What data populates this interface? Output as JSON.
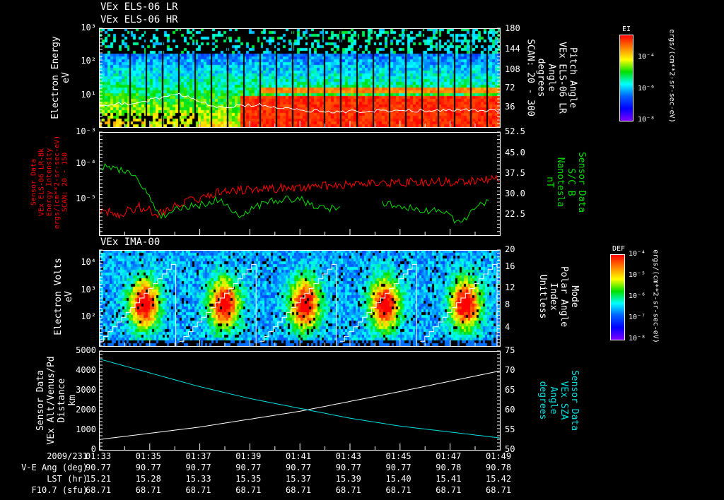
{
  "chart_data": [
    {
      "type": "heatmap",
      "name": "electron-energy-spectrogram",
      "titles": [
        "VEx ELS-06 LR",
        "VEx ELS-06 HR"
      ],
      "ylabel": "Electron Energy\neV",
      "yticks": [
        "10³",
        "10²",
        "10¹"
      ],
      "ylim_log": [
        0,
        3
      ],
      "right_ylabel": "Pitch Angle\nVEx ELS-06 LR\nAngle\ndegrees\nSCAN: 20 - 300",
      "right_yticks": [
        "180",
        "144",
        "108",
        "72",
        "36"
      ],
      "right_ylim": [
        0,
        180
      ],
      "colorbar": {
        "label": "EI",
        "ticks": [
          "10⁻⁴",
          "10⁻⁶",
          "10⁻⁸"
        ],
        "units": "ergs/(cm**2-sr-sec-eV)"
      },
      "pitch_angle_x": [
        0,
        0.1,
        0.2,
        0.3,
        0.4,
        0.5,
        0.6,
        0.7,
        0.8,
        0.9,
        1.0
      ],
      "pitch_angle_y": [
        40,
        45,
        60,
        35,
        42,
        30,
        28,
        30,
        30,
        32,
        30
      ]
    },
    {
      "type": "line",
      "name": "sensor-b-panel",
      "ylabel": "Sensor Data\nVEx ELS-06 LR-Bk\nEnergy Intensity\nergs/(cm**2-sr-sec-eV)\nSCAN: 20 - 150",
      "yticks": [
        "10⁻³",
        "10⁻⁴",
        "10⁻⁵"
      ],
      "ylim_log": [
        -5.9,
        -3
      ],
      "right_ylabel": "Sensor Data\nS/C B\nNanotesla\nnT",
      "right_yticks": [
        "52.5",
        "45.0",
        "37.5",
        "30.0",
        "22.5"
      ],
      "right_ylim": [
        18,
        52.5
      ],
      "series": [
        {
          "name": "ELS energy intensity",
          "color": "#ff0000",
          "axis": "left",
          "x": [
            0,
            0.05,
            0.1,
            0.15,
            0.2,
            0.25,
            0.3,
            0.4,
            0.5,
            0.6,
            0.7,
            0.8,
            0.9,
            1.0
          ],
          "y": [
            -5.2,
            -5.3,
            -5.1,
            -5.3,
            -5.0,
            -4.9,
            -4.65,
            -4.6,
            -4.55,
            -4.5,
            -4.45,
            -4.4,
            -4.4,
            -4.3
          ]
        },
        {
          "name": "S/C B",
          "color": "#00dd00",
          "axis": "right",
          "x": [
            0,
            0.05,
            0.08,
            0.12,
            0.15,
            0.2,
            0.25,
            0.3,
            0.35,
            0.4,
            0.45,
            0.5,
            0.55,
            0.6,
            0.62,
            0.7,
            0.75,
            0.8,
            0.85,
            0.9,
            0.95,
            0.97
          ],
          "y": [
            41,
            40,
            39,
            33,
            24,
            27,
            28,
            30,
            25,
            28,
            30,
            30,
            27,
            27,
            null,
            29,
            28,
            26,
            26,
            22,
            28,
            30
          ]
        }
      ]
    },
    {
      "type": "heatmap",
      "name": "ima-spectrogram",
      "title": "VEx IMA-00",
      "ylabel": "Electron Volts\neV",
      "yticks": [
        "10⁴",
        "10³",
        "10²"
      ],
      "right_ylabel": "Mode\nPolar Angle\nIndex\nUnitless",
      "right_yticks": [
        "20",
        "16",
        "12",
        "8",
        "4"
      ],
      "right_ylim": [
        0,
        20
      ],
      "colorbar": {
        "label": "DEF",
        "ticks": [
          "10⁻⁴",
          "10⁻⁵",
          "10⁻⁶",
          "10⁻⁷",
          "10⁻⁸"
        ],
        "units": "ergs/(cm**2-sr-sec-eV)"
      },
      "scan_starts": [
        0.0,
        0.2,
        0.4,
        0.6,
        0.8,
        1.0
      ]
    },
    {
      "type": "line",
      "name": "altitude-sza-panel",
      "ylabel": "Sensor Data\nVEx Alt/Venus/Pd\nDistance\nkm",
      "yticks": [
        "5000",
        "4000",
        "3000",
        "2000",
        "1000",
        "0"
      ],
      "ylim": [
        0,
        5000
      ],
      "right_ylabel": "Sensor Data\nVEx SZA\nAngle\ndegrees",
      "right_yticks": [
        "75",
        "70",
        "65",
        "60",
        "55",
        "50"
      ],
      "right_ylim": [
        50,
        75
      ],
      "series": [
        {
          "name": "Altitude",
          "color": "#ffffff",
          "axis": "left",
          "x": [
            0,
            0.25,
            0.5,
            0.75,
            1.0
          ],
          "y": [
            520,
            1150,
            1950,
            2950,
            4000
          ]
        },
        {
          "name": "SZA",
          "color": "#00e0e0",
          "axis": "right",
          "x": [
            0,
            0.125,
            0.25,
            0.375,
            0.5,
            0.625,
            0.75,
            0.875,
            1.0
          ],
          "y": [
            73,
            69.5,
            66,
            63,
            60.5,
            58,
            56,
            54.5,
            53
          ]
        }
      ]
    }
  ],
  "time_axis": {
    "row_labels": [
      "2009/231",
      "V-E Ang (deg)",
      "LST (hr)",
      "F10.7 (sfu)"
    ],
    "times": [
      "01:33",
      "01:35",
      "01:37",
      "01:39",
      "01:41",
      "01:43",
      "01:45",
      "01:47",
      "01:49"
    ],
    "ve_ang": [
      "90.77",
      "90.77",
      "90.77",
      "90.77",
      "90.77",
      "90.77",
      "90.77",
      "90.78",
      "90.78"
    ],
    "lst": [
      "15.21",
      "15.28",
      "15.33",
      "15.35",
      "15.37",
      "15.39",
      "15.40",
      "15.41",
      "15.42"
    ],
    "f107": [
      "68.71",
      "68.71",
      "68.71",
      "68.71",
      "68.71",
      "68.71",
      "68.71",
      "68.71",
      "68.71"
    ]
  }
}
